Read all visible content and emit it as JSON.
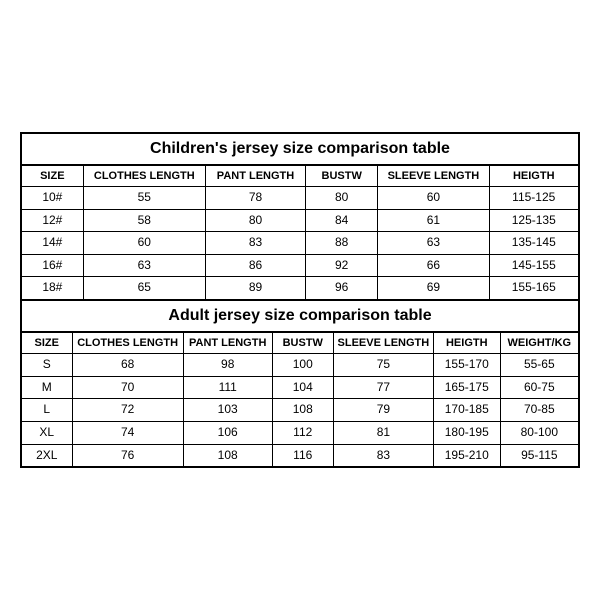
{
  "children": {
    "title": "Children's jersey size comparison table",
    "columns": [
      "SIZE",
      "CLOTHES LENGTH",
      "PANT LENGTH",
      "BUSTW",
      "SLEEVE LENGTH",
      "HEIGTH"
    ],
    "widths_pct": [
      11,
      22,
      18,
      13,
      20,
      16
    ],
    "rows": [
      [
        "10#",
        "55",
        "78",
        "80",
        "60",
        "115-125"
      ],
      [
        "12#",
        "58",
        "80",
        "84",
        "61",
        "125-135"
      ],
      [
        "14#",
        "60",
        "83",
        "88",
        "63",
        "135-145"
      ],
      [
        "16#",
        "63",
        "86",
        "92",
        "66",
        "145-155"
      ],
      [
        "18#",
        "65",
        "89",
        "96",
        "69",
        "155-165"
      ]
    ]
  },
  "adult": {
    "title": "Adult jersey size comparison table",
    "columns": [
      "SIZE",
      "CLOTHES LENGTH",
      "PANT LENGTH",
      "BUSTW",
      "SLEEVE LENGTH",
      "HEIGTH",
      "WEIGHT/KG"
    ],
    "widths_pct": [
      9,
      20,
      16,
      11,
      18,
      12,
      14
    ],
    "rows": [
      [
        "S",
        "68",
        "98",
        "100",
        "75",
        "155-170",
        "55-65"
      ],
      [
        "M",
        "70",
        "111",
        "104",
        "77",
        "165-175",
        "60-75"
      ],
      [
        "L",
        "72",
        "103",
        "108",
        "79",
        "170-185",
        "70-85"
      ],
      [
        "XL",
        "74",
        "106",
        "112",
        "81",
        "180-195",
        "80-100"
      ],
      [
        "2XL",
        "76",
        "108",
        "116",
        "83",
        "195-210",
        "95-115"
      ]
    ]
  }
}
